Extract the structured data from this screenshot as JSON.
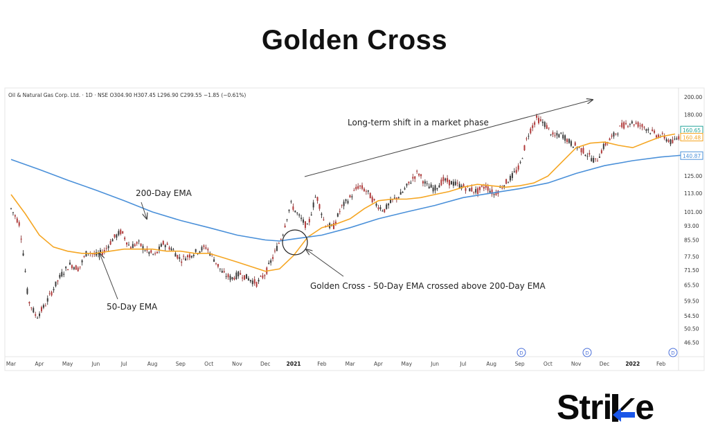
{
  "title": "Golden Cross",
  "brand": {
    "name_part": "Stri",
    "tail": "e"
  },
  "chart_data": {
    "type": "candlestick",
    "header": "Oil & Natural Gas Corp. Ltd. · 1D · NSE  O304.90  H307.45  L296.90  C299.55  −1.85 (−0.61%)",
    "y_ticks": [
      46.5,
      50.5,
      54.5,
      59.5,
      65.5,
      71.5,
      77.5,
      85.5,
      93.0,
      101.0,
      113.0,
      125.0,
      140.0,
      160.0,
      180.0,
      200.0
    ],
    "x_ticks": [
      "Mar",
      "Apr",
      "May",
      "Jun",
      "Jul",
      "Aug",
      "Sep",
      "Oct",
      "Nov",
      "Dec",
      "2021",
      "Feb",
      "Mar",
      "Apr",
      "May",
      "Jun",
      "Jul",
      "Aug",
      "Sep",
      "Oct",
      "Nov",
      "Dec",
      "2022",
      "Feb"
    ],
    "x_bold": [
      "2021",
      "2022"
    ],
    "ylim": [
      44,
      205
    ],
    "price_labels": [
      {
        "value": "160.65",
        "color": "#26a69a"
      },
      {
        "value": "160.48",
        "color": "#f5a623"
      },
      {
        "value": "140.87",
        "color": "#4a90d9"
      }
    ],
    "series": [
      {
        "name": "50-Day EMA",
        "color": "#f5a623",
        "x": [
          0,
          0.5,
          1,
          1.5,
          2,
          2.5,
          3,
          3.5,
          4,
          4.5,
          5,
          5.5,
          6,
          6.5,
          7,
          7.5,
          8,
          8.5,
          9,
          9.5,
          10,
          10.5,
          11,
          11.5,
          12,
          12.5,
          13,
          13.5,
          14,
          14.5,
          15,
          15.5,
          16,
          16.5,
          17,
          17.5,
          18,
          18.5,
          19,
          19.5,
          20,
          20.5,
          21,
          21.5,
          22,
          22.5,
          23,
          23.5
        ],
        "y": [
          112,
          100,
          88,
          82,
          80,
          79,
          79,
          80,
          81,
          81,
          81,
          80,
          80,
          79,
          79,
          77,
          75,
          73,
          71,
          72,
          78,
          87,
          92,
          94,
          97,
          103,
          108,
          109,
          109,
          110,
          112,
          114,
          117,
          119,
          118,
          117,
          118,
          120,
          125,
          136,
          148,
          152,
          153,
          150,
          148,
          153,
          158,
          160.5
        ]
      },
      {
        "name": "200-Day EMA",
        "color": "#4a90d9",
        "x": [
          0,
          1,
          2,
          3,
          4,
          5,
          6,
          7,
          8,
          9,
          9.5,
          10,
          10.5,
          11,
          12,
          13,
          14,
          15,
          16,
          17,
          18,
          19,
          20,
          21,
          22,
          23,
          23.5,
          24
        ],
        "y": [
          138,
          130,
          122,
          115,
          108,
          101,
          96,
          92,
          88,
          85.5,
          85,
          86,
          87,
          88,
          92,
          97,
          101,
          105,
          110,
          113,
          116,
          120,
          127,
          133,
          137,
          140,
          141,
          142
        ]
      }
    ],
    "annotations": [
      {
        "text": "Long-term shift in a market phase"
      },
      {
        "text": "200-Day EMA"
      },
      {
        "text": "50-Day EMA"
      },
      {
        "text": "Golden Cross - 50-Day EMA crossed above 200-Day EMA"
      }
    ],
    "price_path": {
      "x": [
        0,
        0.3,
        0.6,
        0.9,
        1.2,
        1.5,
        1.8,
        2.1,
        2.4,
        2.7,
        3,
        3.3,
        3.6,
        3.9,
        4.2,
        4.5,
        4.8,
        5.1,
        5.4,
        5.7,
        6,
        6.3,
        6.6,
        6.9,
        7.2,
        7.5,
        7.8,
        8.1,
        8.4,
        8.7,
        9,
        9.3,
        9.6,
        9.9,
        10.2,
        10.5,
        10.8,
        11.1,
        11.4,
        11.7,
        12,
        12.3,
        12.6,
        12.9,
        13.2,
        13.5,
        13.8,
        14.1,
        14.4,
        14.7,
        15,
        15.3,
        15.6,
        15.9,
        16.2,
        16.5,
        16.8,
        17.1,
        17.4,
        17.7,
        18,
        18.3,
        18.6,
        18.9,
        19.2,
        19.5,
        19.8,
        20.1,
        20.4,
        20.7,
        21,
        21.3,
        21.6,
        21.9,
        22.2,
        22.5,
        22.8,
        23.1,
        23.4,
        23.7
      ],
      "y": [
        103,
        94,
        60,
        54,
        58,
        64,
        70,
        74,
        72,
        80,
        78,
        80,
        86,
        90,
        82,
        84,
        80,
        78,
        84,
        81,
        76,
        78,
        80,
        82,
        76,
        70,
        68,
        70,
        68,
        66,
        70,
        78,
        88,
        106,
        98,
        92,
        112,
        94,
        92,
        104,
        110,
        118,
        114,
        106,
        102,
        108,
        112,
        120,
        128,
        118,
        116,
        122,
        120,
        118,
        116,
        114,
        118,
        112,
        118,
        124,
        132,
        160,
        176,
        170,
        158,
        160,
        152,
        148,
        142,
        136,
        150,
        158,
        168,
        172,
        170,
        166,
        160,
        158,
        152,
        160
      ]
    },
    "markers": [
      {
        "label": "D"
      },
      {
        "label": "D"
      },
      {
        "label": "D"
      }
    ]
  }
}
